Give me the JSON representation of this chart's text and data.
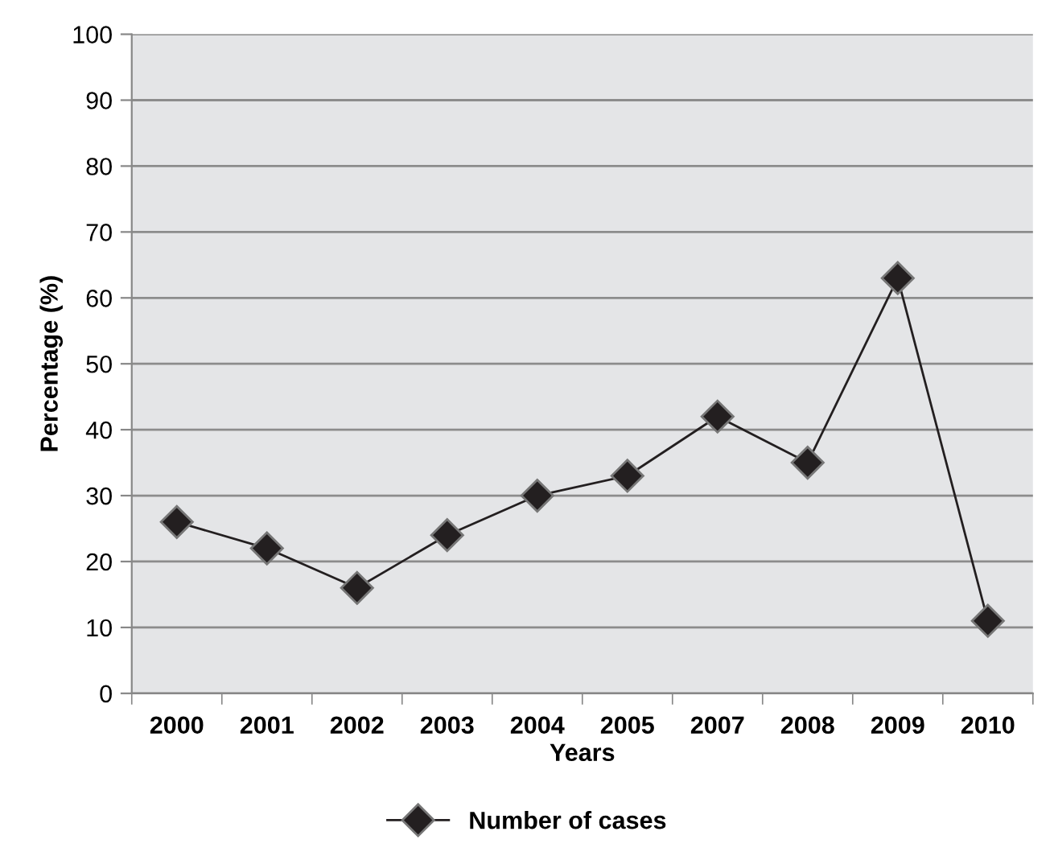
{
  "chart_data": {
    "type": "line",
    "xlabel": "Years",
    "ylabel": "Percentage (%)",
    "categories": [
      "2000",
      "2001",
      "2002",
      "2003",
      "2004",
      "2005",
      "2007",
      "2008",
      "2009",
      "2010"
    ],
    "series": [
      {
        "name": "Number of cases",
        "color": "#231f20",
        "values": [
          26,
          22,
          16,
          24,
          30,
          33,
          42,
          35,
          63,
          11
        ]
      }
    ],
    "ylim": [
      0,
      100
    ],
    "yticks": [
      0,
      10,
      20,
      30,
      40,
      50,
      60,
      70,
      80,
      90,
      100
    ],
    "grid": "y",
    "legend": "bottom",
    "marker": "diamond",
    "line_style": "solid"
  }
}
